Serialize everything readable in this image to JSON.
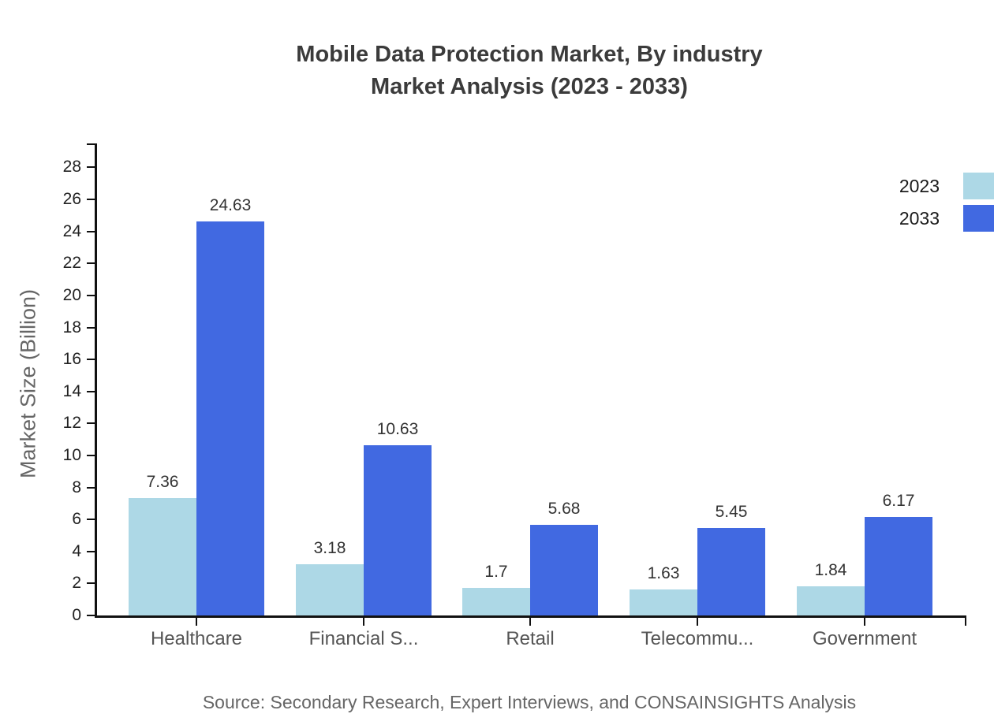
{
  "title": {
    "line1": "Mobile Data Protection Market, By industry",
    "line2": "Market Analysis (2023 - 2033)"
  },
  "source": "Source: Secondary Research, Expert Interviews, and CONSAINSIGHTS Analysis",
  "legend": {
    "items": [
      {
        "label": "2023",
        "color": "#ADD8E6"
      },
      {
        "label": "2033",
        "color": "#4169E1"
      }
    ]
  },
  "chart_data": {
    "type": "bar",
    "title": "Mobile Data Protection Market, By industry Market Analysis (2023 - 2033)",
    "categories": [
      "Healthcare",
      "Financial S...",
      "Retail",
      "Telecommu...",
      "Government"
    ],
    "series": [
      {
        "name": "2023",
        "color": "#ADD8E6",
        "values": [
          7.36,
          3.18,
          1.7,
          1.63,
          1.84
        ],
        "labels": [
          "7.36",
          "3.18",
          "1.7",
          "1.63",
          "1.84"
        ]
      },
      {
        "name": "2033",
        "color": "#4169E1",
        "values": [
          24.63,
          10.63,
          5.68,
          5.45,
          6.17
        ],
        "labels": [
          "24.63",
          "10.63",
          "5.68",
          "5.45",
          "6.17"
        ]
      }
    ],
    "xlabel": "",
    "ylabel": "Market Size (Billion)",
    "ylim": [
      0,
      29.5
    ],
    "yticks": [
      0,
      2,
      4,
      6,
      8,
      10,
      12,
      14,
      16,
      18,
      20,
      22,
      24,
      26,
      28
    ],
    "grid": false,
    "legend_position": "top-right",
    "bar_value_labels": true
  }
}
